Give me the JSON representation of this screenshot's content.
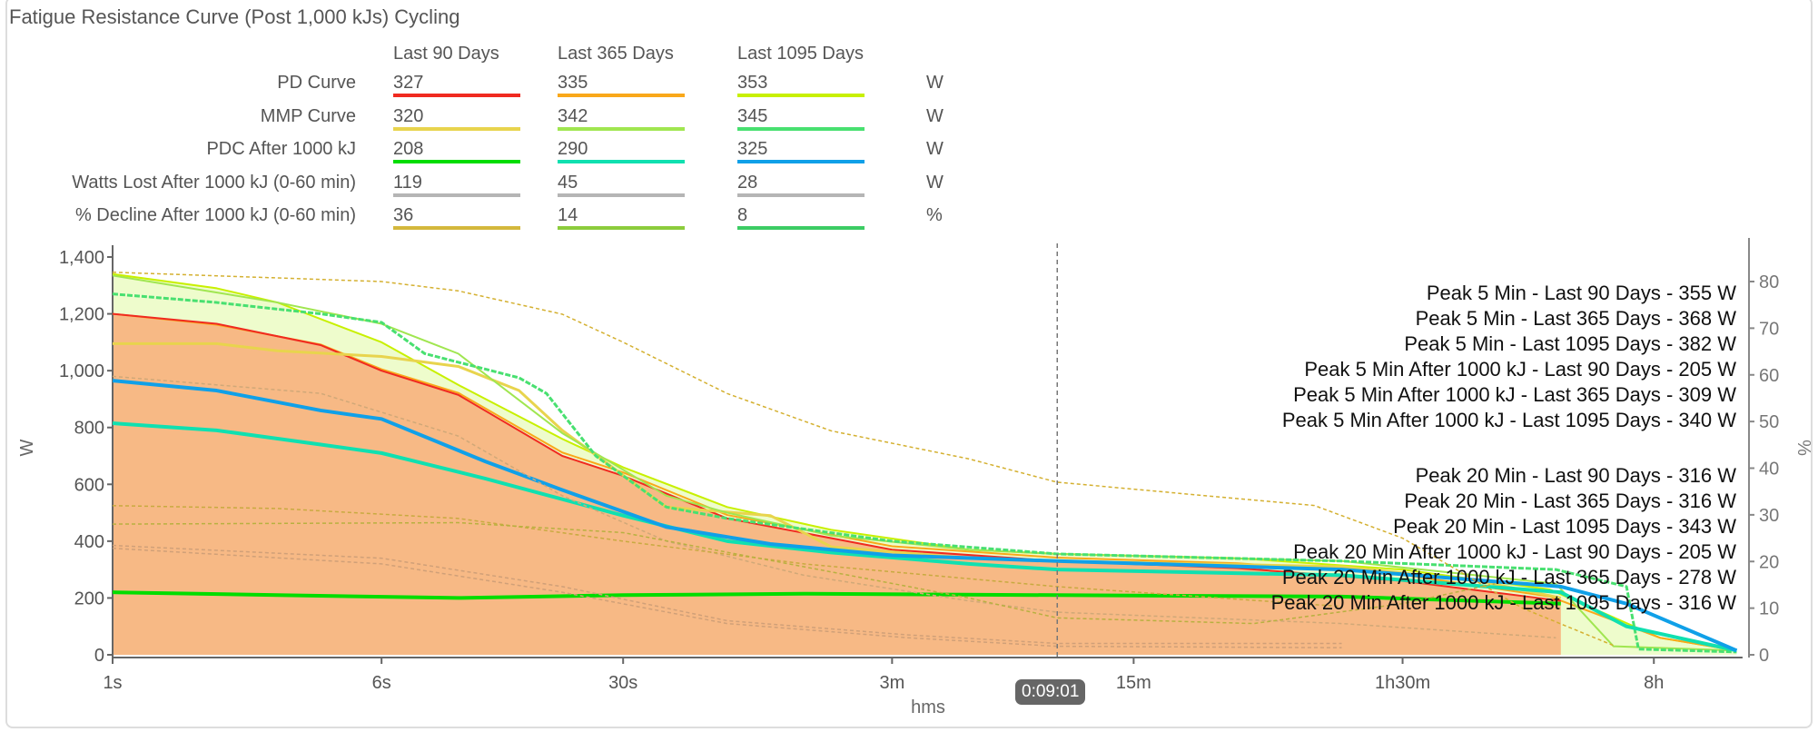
{
  "title": "Fatigue Resistance Curve (Post 1,000 kJs) Cycling",
  "summary_table": {
    "columns": [
      "Last 90 Days",
      "Last 365 Days",
      "Last 1095 Days"
    ],
    "rows": [
      {
        "label": "PD Curve",
        "values": [
          "327",
          "335",
          "353"
        ],
        "unit": "W",
        "colors": [
          "#f02a20",
          "#f9a81a",
          "#c8f000"
        ]
      },
      {
        "label": "MMP Curve",
        "values": [
          "320",
          "342",
          "345"
        ],
        "unit": "W",
        "colors": [
          "#e8d44d",
          "#a0e650",
          "#48e070"
        ]
      },
      {
        "label": "PDC After 1000 kJ",
        "values": [
          "208",
          "290",
          "325"
        ],
        "unit": "W",
        "colors": [
          "#00dd00",
          "#10e0b0",
          "#10a0e8"
        ]
      },
      {
        "label": "Watts Lost After 1000 kJ (0-60 min)",
        "values": [
          "119",
          "45",
          "28"
        ],
        "unit": "W",
        "colors": [
          "#b5b5b5",
          "#b5b5b5",
          "#b5b5b5"
        ]
      },
      {
        "label": "% Decline After 1000 kJ (0-60 min)",
        "values": [
          "36",
          "14",
          "8"
        ],
        "unit": "%",
        "colors": [
          "#d4b83c",
          "#8ccc3c",
          "#3ccc64"
        ]
      }
    ]
  },
  "cursor_label": "0:09:01",
  "chart_data": {
    "type": "line",
    "xlabel": "hms",
    "ylabel": "W",
    "y2label": "%",
    "xscale": "log",
    "xlim_seconds": [
      1,
      52000
    ],
    "ylim": [
      0,
      1400
    ],
    "y2lim": [
      0,
      88
    ],
    "x_ticks": [
      {
        "s": 1,
        "label": "1s"
      },
      {
        "s": 6,
        "label": "6s"
      },
      {
        "s": 30,
        "label": "30s"
      },
      {
        "s": 180,
        "label": "3m"
      },
      {
        "s": 900,
        "label": "15m"
      },
      {
        "s": 5400,
        "label": "1h30m"
      },
      {
        "s": 28800,
        "label": "8h"
      }
    ],
    "y_ticks": [
      {
        "v": 0,
        "label": "0"
      },
      {
        "v": 200,
        "label": "200"
      },
      {
        "v": 400,
        "label": "400"
      },
      {
        "v": 600,
        "label": "600"
      },
      {
        "v": 800,
        "label": "800"
      },
      {
        "v": 1000,
        "label": "1,000"
      },
      {
        "v": 1200,
        "label": "1,200"
      },
      {
        "v": 1400,
        "label": "1,400"
      }
    ],
    "y2_ticks": [
      {
        "v": 0,
        "label": "0"
      },
      {
        "v": 10,
        "label": "10"
      },
      {
        "v": 20,
        "label": "20"
      },
      {
        "v": 30,
        "label": "30"
      },
      {
        "v": 40,
        "label": "40"
      },
      {
        "v": 50,
        "label": "50"
      },
      {
        "v": 60,
        "label": "60"
      },
      {
        "v": 70,
        "label": "70"
      },
      {
        "v": 80,
        "label": "80"
      }
    ],
    "cursor_seconds": 541,
    "fill_colors": {
      "pd_1095_area": "#eefccc",
      "pd_90_area": "#f7b985"
    },
    "series": [
      {
        "name": "PD Curve Last 1095 Days",
        "color": "#c8f000",
        "axis": "W",
        "dash": false,
        "width": 2,
        "points": [
          [
            1,
            1340
          ],
          [
            2,
            1290
          ],
          [
            3,
            1240
          ],
          [
            6,
            1100
          ],
          [
            10,
            950
          ],
          [
            20,
            760
          ],
          [
            30,
            660
          ],
          [
            60,
            520
          ],
          [
            120,
            440
          ],
          [
            300,
            370
          ],
          [
            540,
            355
          ],
          [
            1800,
            340
          ],
          [
            5400,
            300
          ],
          [
            14400,
            230
          ],
          [
            30000,
            60
          ],
          [
            50000,
            15
          ]
        ]
      },
      {
        "name": "PD Curve Last 365 Days",
        "color": "#f9a81a",
        "axis": "W",
        "dash": false,
        "width": 2,
        "points": [
          [
            1,
            1200
          ],
          [
            2,
            1162
          ],
          [
            4,
            1092
          ],
          [
            6,
            1005
          ],
          [
            10,
            922
          ],
          [
            20,
            712
          ],
          [
            30,
            642
          ],
          [
            60,
            492
          ],
          [
            180,
            382
          ],
          [
            540,
            342
          ],
          [
            1800,
            322
          ],
          [
            5400,
            282
          ],
          [
            14400,
            205
          ],
          [
            30000,
            60
          ],
          [
            50000,
            15
          ]
        ]
      },
      {
        "name": "PD Curve Last 90 Days",
        "color": "#f02a20",
        "axis": "W",
        "dash": false,
        "width": 2,
        "points": [
          [
            1,
            1200
          ],
          [
            2,
            1165
          ],
          [
            4,
            1090
          ],
          [
            6,
            1000
          ],
          [
            10,
            915
          ],
          [
            20,
            700
          ],
          [
            30,
            630
          ],
          [
            60,
            480
          ],
          [
            180,
            370
          ],
          [
            540,
            330
          ],
          [
            1800,
            305
          ],
          [
            5400,
            260
          ],
          [
            15500,
            190
          ]
        ]
      },
      {
        "name": "MMP Curve Last 90 Days",
        "color": "#e8d44d",
        "axis": "W",
        "dash": false,
        "width": 3,
        "points": [
          [
            1,
            1095
          ],
          [
            2,
            1095
          ],
          [
            3,
            1070
          ],
          [
            6,
            1050
          ],
          [
            10,
            1015
          ],
          [
            15,
            930
          ],
          [
            20,
            790
          ],
          [
            40,
            520
          ],
          [
            80,
            490
          ],
          [
            120,
            380
          ],
          [
            300,
            340
          ],
          [
            540,
            330
          ],
          [
            3600,
            310
          ],
          [
            9000,
            260
          ],
          [
            15500,
            200
          ]
        ]
      },
      {
        "name": "MMP Curve Last 365 Days",
        "color": "#a0e650",
        "axis": "W",
        "dash": false,
        "width": 2,
        "points": [
          [
            1,
            1335
          ],
          [
            3,
            1240
          ],
          [
            6,
            1165
          ],
          [
            10,
            1060
          ],
          [
            20,
            780
          ],
          [
            40,
            560
          ],
          [
            60,
            500
          ],
          [
            120,
            420
          ],
          [
            300,
            370
          ],
          [
            540,
            355
          ],
          [
            3600,
            330
          ],
          [
            15000,
            250
          ],
          [
            22000,
            30
          ],
          [
            50000,
            15
          ]
        ]
      },
      {
        "name": "MMP Curve Last 1095 Days",
        "color": "#48e070",
        "axis": "W",
        "dash": true,
        "width": 3,
        "points": [
          [
            1,
            1270
          ],
          [
            2,
            1240
          ],
          [
            4,
            1200
          ],
          [
            6,
            1170
          ],
          [
            8,
            1060
          ],
          [
            15,
            975
          ],
          [
            18,
            920
          ],
          [
            25,
            700
          ],
          [
            40,
            520
          ],
          [
            60,
            480
          ],
          [
            180,
            400
          ],
          [
            540,
            355
          ],
          [
            3600,
            330
          ],
          [
            15000,
            300
          ],
          [
            24000,
            240
          ],
          [
            26000,
            20
          ],
          [
            50000,
            10
          ]
        ]
      },
      {
        "name": "PDC After 1000 kJ Last 90 Days",
        "color": "#00dd00",
        "axis": "W",
        "dash": false,
        "width": 4,
        "points": [
          [
            1,
            220
          ],
          [
            3,
            210
          ],
          [
            10,
            200
          ],
          [
            30,
            210
          ],
          [
            100,
            215
          ],
          [
            540,
            210
          ],
          [
            3600,
            205
          ],
          [
            15500,
            180
          ]
        ]
      },
      {
        "name": "PDC After 1000 kJ Last 365 Days",
        "color": "#10e0b0",
        "axis": "W",
        "dash": false,
        "width": 4,
        "points": [
          [
            1,
            815
          ],
          [
            2,
            790
          ],
          [
            4,
            740
          ],
          [
            6,
            710
          ],
          [
            12,
            620
          ],
          [
            30,
            490
          ],
          [
            60,
            400
          ],
          [
            120,
            360
          ],
          [
            300,
            320
          ],
          [
            540,
            300
          ],
          [
            3600,
            280
          ],
          [
            15500,
            220
          ],
          [
            24000,
            100
          ],
          [
            50000,
            15
          ]
        ]
      },
      {
        "name": "PDC After 1000 kJ Last 1095 Days",
        "color": "#10a0e8",
        "axis": "W",
        "dash": false,
        "width": 4,
        "points": [
          [
            1,
            965
          ],
          [
            2,
            930
          ],
          [
            4,
            860
          ],
          [
            6,
            830
          ],
          [
            12,
            680
          ],
          [
            20,
            580
          ],
          [
            40,
            450
          ],
          [
            80,
            390
          ],
          [
            180,
            350
          ],
          [
            540,
            330
          ],
          [
            3600,
            300
          ],
          [
            15500,
            240
          ],
          [
            24000,
            180
          ],
          [
            50000,
            15
          ]
        ]
      },
      {
        "name": "% Decline (dashed)",
        "color": "#d4b030",
        "axis": "%",
        "dash": true,
        "width": 1.5,
        "points": [
          [
            1,
            82
          ],
          [
            6,
            80
          ],
          [
            10,
            78
          ],
          [
            20,
            73
          ],
          [
            30,
            67
          ],
          [
            60,
            56
          ],
          [
            120,
            48
          ],
          [
            300,
            42
          ],
          [
            540,
            37
          ],
          [
            1500,
            34
          ],
          [
            3000,
            32
          ],
          [
            5400,
            25
          ],
          [
            12000,
            10
          ],
          [
            22000,
            2
          ]
        ]
      },
      {
        "name": "Watts Lost 1 (dashed)",
        "color": "#d0a878",
        "axis": "W",
        "dash": true,
        "width": 1.5,
        "points": [
          [
            1,
            980
          ],
          [
            4,
            920
          ],
          [
            10,
            770
          ],
          [
            20,
            560
          ],
          [
            40,
            400
          ],
          [
            100,
            280
          ],
          [
            300,
            190
          ],
          [
            540,
            150
          ],
          [
            3600,
            110
          ],
          [
            15000,
            60
          ]
        ]
      },
      {
        "name": "Watts Lost 2 (dashed)",
        "color": "#c8aa40",
        "axis": "W",
        "dash": true,
        "width": 1.5,
        "points": [
          [
            1,
            525
          ],
          [
            3,
            515
          ],
          [
            10,
            480
          ],
          [
            30,
            400
          ],
          [
            100,
            320
          ],
          [
            540,
            240
          ],
          [
            3600,
            170
          ]
        ]
      },
      {
        "name": "Watts Lost 3 (dashed)",
        "color": "#b8b040",
        "axis": "W",
        "dash": true,
        "width": 1.5,
        "points": [
          [
            1,
            460
          ],
          [
            10,
            465
          ],
          [
            30,
            430
          ],
          [
            100,
            310
          ],
          [
            300,
            200
          ],
          [
            540,
            130
          ],
          [
            2000,
            110
          ],
          [
            5400,
            180
          ],
          [
            10000,
            250
          ]
        ]
      },
      {
        "name": "Watts Lost 4 (dashed)",
        "color": "#d0a078",
        "axis": "W",
        "dash": true,
        "width": 1.5,
        "points": [
          [
            1,
            385
          ],
          [
            6,
            340
          ],
          [
            20,
            240
          ],
          [
            60,
            120
          ],
          [
            200,
            70
          ],
          [
            540,
            40
          ],
          [
            3600,
            40
          ]
        ]
      },
      {
        "name": "Watts Lost 5 (dashed)",
        "color": "#d0a078",
        "axis": "W",
        "dash": true,
        "width": 1.5,
        "points": [
          [
            1,
            375
          ],
          [
            6,
            320
          ],
          [
            20,
            220
          ],
          [
            60,
            110
          ],
          [
            200,
            60
          ],
          [
            540,
            30
          ],
          [
            3600,
            25
          ]
        ]
      }
    ],
    "annotations": [
      "Peak 5 Min - Last 90 Days - 355 W",
      "Peak 5 Min - Last 365 Days - 368 W",
      "Peak 5 Min - Last 1095 Days - 382 W",
      "Peak 5 Min After 1000 kJ - Last 90 Days - 205 W",
      "Peak 5 Min After 1000 kJ - Last 365 Days - 309 W",
      "Peak 5 Min After 1000 kJ - Last 1095 Days - 340 W",
      "Peak 20 Min - Last 90 Days - 316 W",
      "Peak 20 Min - Last 365 Days - 316 W",
      "Peak 20 Min - Last 1095 Days - 343 W",
      "Peak 20 Min After 1000 kJ - Last 90 Days - 205 W",
      "Peak 20 Min After 1000 kJ - Last 365 Days - 278 W",
      "Peak 20 Min After 1000 kJ - Last 1095 Days - 316 W"
    ]
  }
}
